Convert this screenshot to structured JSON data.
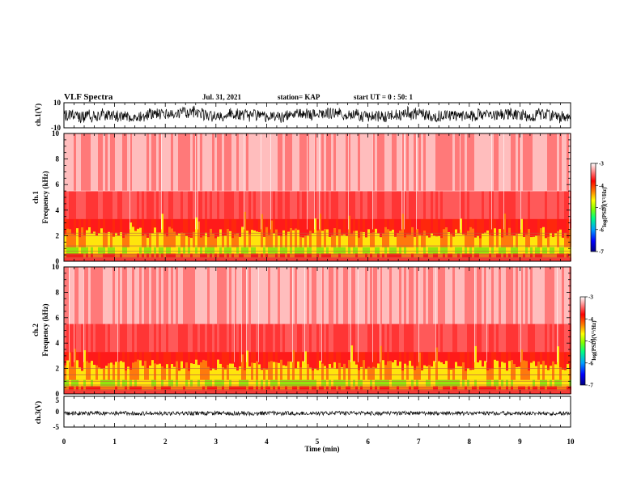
{
  "header": {
    "title": "VLF Spectra",
    "date": "Jul. 31, 2021",
    "station": "station= KAP",
    "start": "start  UT =   0 : 50: 1"
  },
  "chart_data": [
    {
      "type": "line",
      "name": "ch1-waveform",
      "ylabel": "ch.1(V)",
      "ylim": [
        -10,
        10
      ],
      "yticks": [
        "10",
        "-10"
      ],
      "xlim": [
        0,
        10
      ],
      "color": "#000000"
    },
    {
      "type": "heatmap",
      "name": "ch1-spectrogram",
      "ylabel_line1": "ch.1",
      "ylabel_line2": "Frequency  (kHz)",
      "ylim": [
        0,
        10
      ],
      "yticks": [
        "0",
        "2",
        "4",
        "6",
        "8",
        "10"
      ],
      "xlim": [
        0,
        10
      ],
      "colorbar": {
        "label": "log(PSD)(V²/Hz)",
        "range": [
          -7,
          -3
        ],
        "ticks": [
          "-3",
          "-4",
          "-5",
          "-6",
          "-7"
        ],
        "colors": [
          "#000080",
          "#0000ff",
          "#00a0ff",
          "#00ff80",
          "#80ff00",
          "#ffff00",
          "#ff8000",
          "#ff0000",
          "#ffffff"
        ]
      }
    },
    {
      "type": "heatmap",
      "name": "ch2-spectrogram",
      "ylabel_line1": "ch.2",
      "ylabel_line2": "Frequency  (kHz)",
      "ylim": [
        0,
        10
      ],
      "yticks": [
        "0",
        "2",
        "4",
        "6",
        "8",
        "10"
      ],
      "xlim": [
        0,
        10
      ],
      "colorbar": {
        "label": "log(PSD)(V²/Hz)",
        "range": [
          -7,
          -3
        ],
        "ticks": [
          "-3",
          "-4",
          "-5",
          "-6",
          "-7"
        ],
        "colors": [
          "#000080",
          "#0000ff",
          "#00a0ff",
          "#00ff80",
          "#80ff00",
          "#ffff00",
          "#ff8000",
          "#ff0000",
          "#ffffff"
        ]
      }
    },
    {
      "type": "line",
      "name": "ch3-waveform",
      "ylabel": "ch.3(V)",
      "ylim": [
        -5,
        5
      ],
      "yticks": [
        "5",
        "0",
        "-5"
      ],
      "xlim": [
        0,
        10
      ],
      "color": "#000000"
    }
  ],
  "xaxis": {
    "label": "Time  (min)",
    "range": [
      0,
      10
    ],
    "ticks": [
      "0",
      "1",
      "2",
      "3",
      "4",
      "5",
      "6",
      "7",
      "8",
      "9",
      "10"
    ]
  }
}
